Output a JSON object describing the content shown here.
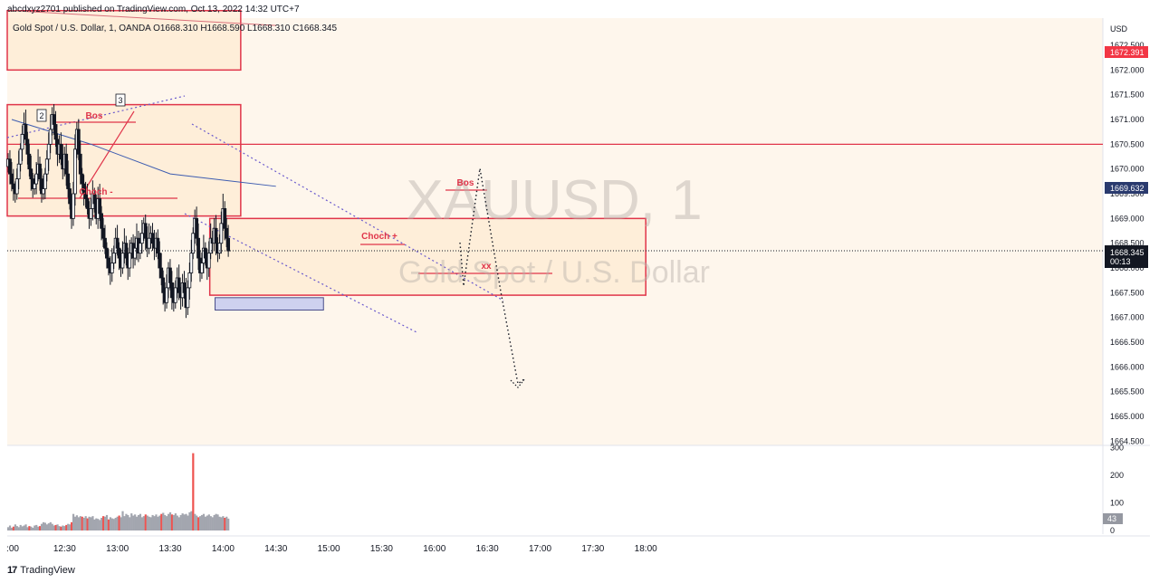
{
  "header": {
    "published": "abcdxyz2701 published on TradingView.com, Oct 13, 2022 14:32 UTC+7"
  },
  "legend": {
    "text": "Gold Spot / U.S. Dollar, 1, OANDA  O1668.310  H1668.590  L1668.310  C1668.345"
  },
  "watermark": {
    "symbol": "XAUUSD, 1",
    "name": "Gold Spot / U.S. Dollar"
  },
  "footer": {
    "logo": "17",
    "brand": "TradingView"
  },
  "colors": {
    "zone_fill": "#fdebd3",
    "zone_border": "#e0354a",
    "up_candle": "#131722",
    "vol_up": "#a3a6af",
    "vol_down": "#ef5350",
    "ma_blue": "#3d5cb0",
    "ma_red": "#d9707a",
    "trend_dotted": "#6a5acd",
    "price_badge": "#131722",
    "level_badge_red": "#f23645",
    "level_badge_navy": "#2a3a6e"
  },
  "chart_data": {
    "type": "candlestick",
    "title": "Gold Spot / U.S. Dollar, 1, OANDA",
    "y_axis": {
      "currency": "USD",
      "range": [
        1664.5,
        1673.0
      ],
      "ticks": [
        "1664.500",
        "1665.000",
        "1665.500",
        "1666.000",
        "1666.500",
        "1667.000",
        "1667.500",
        "1668.000",
        "1668.500",
        "1669.000",
        "1669.500",
        "1670.000",
        "1670.500",
        "1671.000",
        "1671.500",
        "1672.000",
        "1672.500"
      ]
    },
    "x_axis": {
      "ticks": [
        ":00",
        "12:30",
        "13:00",
        "13:30",
        "14:00",
        "14:30",
        "15:00",
        "15:30",
        "16:00",
        "16:30",
        "17:00",
        "17:30",
        "18:00"
      ],
      "range_minutes": [
        720,
        1080
      ]
    },
    "volume_axis": {
      "ticks": [
        "300",
        "200",
        "100",
        "0"
      ],
      "range": [
        0,
        300
      ],
      "current": "43"
    },
    "badges": {
      "ma_red_value": "1672.391",
      "ma_blue_value": "1669.632",
      "last_price": "1668.345",
      "countdown": "00:13"
    },
    "last_price": 1668.345,
    "ohlc_last": {
      "open": 1668.31,
      "high": 1668.59,
      "low": 1668.31,
      "close": 1668.345
    },
    "close_series": [
      1670.2,
      1669.9,
      1669.7,
      1669.6,
      1669.5,
      1669.8,
      1670.1,
      1670.4,
      1670.7,
      1670.9,
      1670.6,
      1670.3,
      1670.0,
      1669.8,
      1669.6,
      1669.7,
      1669.9,
      1670.1,
      1669.8,
      1669.5,
      1669.6,
      1669.9,
      1670.2,
      1670.5,
      1670.8,
      1671.1,
      1670.9,
      1670.6,
      1670.3,
      1670.5,
      1670.2,
      1670.0,
      1670.3,
      1669.9,
      1669.6,
      1669.3,
      1669.0,
      1669.5,
      1670.4,
      1670.8,
      1670.3,
      1669.9,
      1669.7,
      1669.5,
      1669.4,
      1669.2,
      1669.0,
      1669.2,
      1669.5,
      1669.3,
      1669.0,
      1669.4,
      1669.1,
      1668.8,
      1668.6,
      1668.4,
      1668.2,
      1668.0,
      1667.9,
      1668.1,
      1668.3,
      1668.6,
      1668.4,
      1668.2,
      1668.0,
      1668.3,
      1668.5,
      1668.2,
      1668.0,
      1668.3,
      1668.5,
      1668.2,
      1668.4,
      1668.6,
      1668.3,
      1668.5,
      1668.7,
      1668.9,
      1668.6,
      1668.4,
      1668.6,
      1668.7,
      1668.5,
      1668.4,
      1668.6,
      1668.3,
      1668.0,
      1667.8,
      1667.5,
      1667.3,
      1667.6,
      1668.0,
      1667.7,
      1667.4,
      1667.3,
      1667.6,
      1667.8,
      1667.5,
      1667.4,
      1667.7,
      1667.5,
      1667.2,
      1667.6,
      1667.9,
      1668.3,
      1668.7,
      1669.0,
      1668.6,
      1668.2,
      1667.9,
      1668.1,
      1668.4,
      1668.2,
      1668.0,
      1668.3,
      1668.6,
      1668.5,
      1668.8,
      1668.5,
      1668.3,
      1668.5,
      1668.9,
      1669.2,
      1668.8,
      1668.6,
      1668.345
    ],
    "volume_series": [
      12,
      18,
      10,
      14,
      22,
      16,
      12,
      20,
      15,
      18,
      22,
      12,
      16,
      14,
      10,
      18,
      20,
      14,
      16,
      24,
      30,
      28,
      22,
      26,
      30,
      24,
      18,
      20,
      22,
      16,
      14,
      18,
      16,
      20,
      24,
      22,
      30,
      60,
      50,
      55,
      48,
      52,
      50,
      46,
      52,
      44,
      50,
      48,
      52,
      40,
      44,
      42,
      38,
      46,
      52,
      50,
      56,
      40,
      48,
      44,
      42,
      46,
      50,
      54,
      48,
      70,
      52,
      60,
      56,
      48,
      62,
      54,
      58,
      50,
      56,
      60,
      48,
      52,
      58,
      54,
      50,
      48,
      56,
      52,
      58,
      50,
      54,
      60,
      64,
      56,
      52,
      60,
      66,
      58,
      56,
      62,
      54,
      48,
      56,
      62,
      58,
      60,
      54,
      66,
      70,
      280,
      60,
      54,
      48,
      52,
      56,
      60,
      50,
      54,
      58,
      52,
      48,
      56,
      60,
      58,
      50,
      48,
      52,
      46,
      50,
      43
    ],
    "series": [
      {
        "name": "",
        "type": "moving-average",
        "color": "#3d5cb0",
        "points": [
          [
            720,
            1671.0
          ],
          [
            765,
            1670.5
          ],
          [
            810,
            1669.9
          ],
          [
            870,
            1669.65
          ]
        ]
      },
      {
        "name": "",
        "type": "moving-average",
        "color": "#d9707a",
        "points": [
          [
            720,
            1673.2
          ],
          [
            870,
            1672.9
          ]
        ]
      }
    ],
    "zones": [
      {
        "x": [
          720,
          850
        ],
        "y": [
          1672.0,
          1673.2
        ]
      },
      {
        "x": [
          720,
          850
        ],
        "y": [
          1669.05,
          1671.3
        ]
      },
      {
        "x": [
          835,
          1080
        ],
        "y": [
          1667.45,
          1669.0
        ]
      },
      {
        "x": [
          838,
          897
        ],
        "y": [
          1667.15,
          1667.4
        ],
        "style": "demand"
      }
    ],
    "levels": [
      {
        "y": 1670.5,
        "x": [
          720,
          1090
        ]
      }
    ],
    "annotations": [
      {
        "text": "2",
        "type": "box-label"
      },
      {
        "text": "3",
        "type": "box-label"
      },
      {
        "text": "Bos"
      },
      {
        "text": "Choch -"
      },
      {
        "text": "Choch +"
      },
      {
        "text": "Bos"
      },
      {
        "text": "xx"
      }
    ],
    "grid": false
  }
}
